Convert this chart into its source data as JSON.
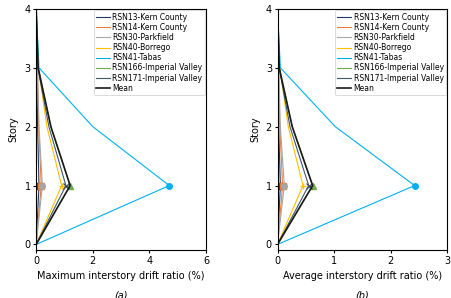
{
  "stories": [
    0,
    1,
    2,
    3,
    4
  ],
  "series_a": {
    "RSN13-Kern County": [
      0,
      0.1,
      0.05,
      0.03,
      0.0
    ],
    "RSN14-Kern County": [
      0,
      0.18,
      0.09,
      0.04,
      0.0
    ],
    "RSN30-Parkfield": [
      0,
      0.22,
      0.1,
      0.05,
      0.0
    ],
    "RSN40-Borrego": [
      0,
      0.9,
      0.38,
      0.08,
      0.0
    ],
    "RSN41-Tabas": [
      0,
      4.7,
      2.0,
      0.1,
      0.0
    ],
    "RSN166-Imperial Valley": [
      0,
      1.2,
      0.52,
      0.07,
      0.0
    ],
    "RSN171-Imperial Valley": [
      0,
      1.05,
      0.45,
      0.06,
      0.0
    ],
    "Mean": [
      0,
      1.2,
      0.52,
      0.07,
      0.0
    ]
  },
  "series_b": {
    "RSN13-Kern County": [
      0,
      0.05,
      0.02,
      0.01,
      0.0
    ],
    "RSN14-Kern County": [
      0,
      0.09,
      0.04,
      0.02,
      0.0
    ],
    "RSN30-Parkfield": [
      0,
      0.12,
      0.05,
      0.02,
      0.0
    ],
    "RSN40-Borrego": [
      0,
      0.45,
      0.19,
      0.04,
      0.0
    ],
    "RSN41-Tabas": [
      0,
      2.42,
      1.02,
      0.05,
      0.0
    ],
    "RSN166-Imperial Valley": [
      0,
      0.62,
      0.26,
      0.03,
      0.0
    ],
    "RSN171-Imperial Valley": [
      0,
      0.55,
      0.22,
      0.03,
      0.0
    ],
    "Mean": [
      0,
      0.62,
      0.26,
      0.03,
      0.0
    ]
  },
  "colors": {
    "RSN13-Kern County": "#1f3864",
    "RSN14-Kern County": "#ed7d31",
    "RSN30-Parkfield": "#a6a6a6",
    "RSN40-Borrego": "#ffc000",
    "RSN41-Tabas": "#00b0f0",
    "RSN166-Imperial Valley": "#70ad47",
    "RSN171-Imperial Valley": "#44546a",
    "Mean": "#1a1a1a"
  },
  "markers": {
    "RSN13-Kern County": "s",
    "RSN14-Kern County": "s",
    "RSN30-Parkfield": "o",
    "RSN40-Borrego": "+",
    "RSN41-Tabas": "o",
    "RSN166-Imperial Valley": "^",
    "RSN171-Imperial Valley": "x",
    "Mean": ""
  },
  "marker_only_at_peak": true,
  "peak_story": 1,
  "xlabel_a": "Maximum interstory drift ratio (%)",
  "xlabel_b": "Average interstory drift ratio (%)",
  "ylabel": "Story",
  "label_a": "(a)",
  "label_b": "(b)",
  "xlim_a": [
    0,
    6
  ],
  "xlim_b": [
    0,
    3
  ],
  "xticks_a": [
    0,
    2,
    4,
    6
  ],
  "xticks_b": [
    0,
    1,
    2,
    3
  ],
  "ylim": [
    -0.1,
    4
  ],
  "yticks": [
    0,
    1,
    2,
    3,
    4
  ],
  "fontsize": 7,
  "legend_fontsize": 5.5
}
